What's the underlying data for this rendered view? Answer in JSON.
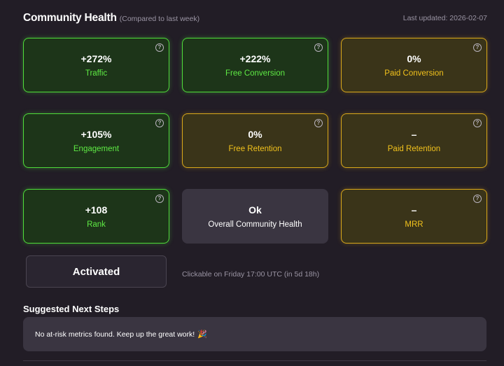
{
  "header": {
    "title": "Community Health",
    "subtitle": "(Compared to last week)",
    "last_updated": "Last updated: 2026-02-07"
  },
  "metrics": [
    {
      "value": "+272%",
      "label": "Traffic",
      "status": "green"
    },
    {
      "value": "+222%",
      "label": "Free Conversion",
      "status": "green"
    },
    {
      "value": "0%",
      "label": "Paid Conversion",
      "status": "yellow"
    },
    {
      "value": "+105%",
      "label": "Engagement",
      "status": "green"
    },
    {
      "value": "0%",
      "label": "Free Retention",
      "status": "yellow"
    },
    {
      "value": "–",
      "label": "Paid Retention",
      "status": "yellow"
    },
    {
      "value": "+108",
      "label": "Rank",
      "status": "green"
    },
    {
      "value": "Ok",
      "label": "Overall Community Health",
      "status": "neutral"
    },
    {
      "value": "–",
      "label": "MRR",
      "status": "yellow"
    }
  ],
  "help_glyph": "?",
  "action": {
    "button_label": "Activated",
    "note": "Clickable on Friday 17:00 UTC (in 5d 18h)"
  },
  "next_steps": {
    "title": "Suggested Next Steps",
    "message": "No at-risk metrics found. Keep up the great work!",
    "icon": "party-popper-icon",
    "icon_glyph": "🎉"
  },
  "colors": {
    "background": "#221d26",
    "green_accent": "#4fdc3a",
    "yellow_accent": "#d9a81a",
    "neutral_card": "#3a3541"
  }
}
